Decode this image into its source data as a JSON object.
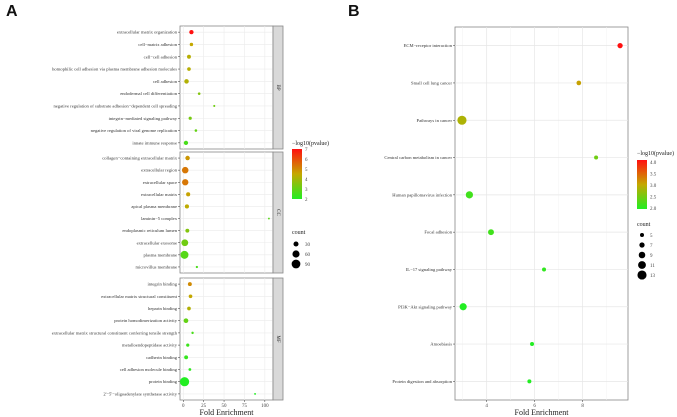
{
  "chart_data": [
    {
      "panel_label": "A",
      "type": "scatter",
      "xlabel": "Fold Enrichment",
      "xlim": [
        -4,
        110
      ],
      "xticks": [
        0,
        25,
        50,
        75,
        100
      ],
      "color_legend_title": "−log10(pvalue)",
      "color_ticks": [
        7,
        6,
        5,
        4,
        3,
        2
      ],
      "color_range": [
        2,
        7
      ],
      "size_legend_title": "count",
      "size_legend": [
        30,
        60,
        90
      ],
      "facets": [
        {
          "name": "BP",
          "terms": [
            {
              "term": "extracellular matrix organization",
              "fold": 10,
              "logp": 7.0,
              "count": 22
            },
            {
              "term": "cell−matrix adhesion",
              "fold": 10,
              "logp": 4.5,
              "count": 14
            },
            {
              "term": "cell−cell adhesion",
              "fold": 7,
              "logp": 4.3,
              "count": 18
            },
            {
              "term": "homophilic cell adhesion via plasma membrane adhesion molecules",
              "fold": 7,
              "logp": 4.3,
              "count": 16
            },
            {
              "term": "cell adhesion",
              "fold": 4,
              "logp": 4.2,
              "count": 24
            },
            {
              "term": "endodermal cell differentiation",
              "fold": 19.5,
              "logp": 3.5,
              "count": 8
            },
            {
              "term": "negative regulation of substrate adhesion−dependent cell spreading",
              "fold": 38,
              "logp": 3.2,
              "count": 5
            },
            {
              "term": "integrin−mediated signaling pathway",
              "fold": 8.5,
              "logp": 3.3,
              "count": 12
            },
            {
              "term": "negative regulation of viral genome replication",
              "fold": 15.5,
              "logp": 3.0,
              "count": 8
            },
            {
              "term": "innate immune response",
              "fold": 3.3,
              "logp": 2.6,
              "count": 22
            }
          ]
        },
        {
          "name": "CC",
          "terms": [
            {
              "term": "collagen−containing extracellular matrix",
              "fold": 5.3,
              "logp": 4.8,
              "count": 24
            },
            {
              "term": "extracellular region",
              "fold": 2.4,
              "logp": 5.3,
              "count": 50
            },
            {
              "term": "extracellular space",
              "fold": 2.4,
              "logp": 5.3,
              "count": 48
            },
            {
              "term": "extracellular matrix",
              "fold": 6,
              "logp": 4.6,
              "count": 20
            },
            {
              "term": "apical plasma membrane",
              "fold": 4.5,
              "logp": 4.4,
              "count": 20
            },
            {
              "term": "laminin−5 complex",
              "fold": 105,
              "logp": 2.8,
              "count": 4
            },
            {
              "term": "endoplasmic reticulum lumen",
              "fold": 5,
              "logp": 3.5,
              "count": 18
            },
            {
              "term": "extracellular exosome",
              "fold": 1.9,
              "logp": 3.2,
              "count": 55
            },
            {
              "term": "plasma membrane",
              "fold": 1.5,
              "logp": 2.8,
              "count": 75
            },
            {
              "term": "microvillus membrane",
              "fold": 16.7,
              "logp": 2.6,
              "count": 6
            }
          ]
        },
        {
          "name": "MF",
          "terms": [
            {
              "term": "integrin binding",
              "fold": 8.1,
              "logp": 5.0,
              "count": 18
            },
            {
              "term": "extracellular matrix structural constituent",
              "fold": 8.9,
              "logp": 4.5,
              "count": 16
            },
            {
              "term": "heparin binding",
              "fold": 7,
              "logp": 4.2,
              "count": 16
            },
            {
              "term": "protein homodimerization activity",
              "fold": 3.3,
              "logp": 3.0,
              "count": 26
            },
            {
              "term": "extracellular matrix structural constituent conferring tensile strength",
              "fold": 11.4,
              "logp": 2.6,
              "count": 7
            },
            {
              "term": "metalloendopeptidase activity",
              "fold": 5.5,
              "logp": 2.4,
              "count": 12
            },
            {
              "term": "cadherin binding",
              "fold": 3.5,
              "logp": 2.3,
              "count": 18
            },
            {
              "term": "cell adhesion molecule binding",
              "fold": 8.1,
              "logp": 2.2,
              "count": 9
            },
            {
              "term": "protein binding",
              "fold": 1.6,
              "logp": 2.0,
              "count": 100
            },
            {
              "term": "2'−5'−oligoadenylate synthetase activity",
              "fold": 88,
              "logp": 2.0,
              "count": 4
            }
          ]
        }
      ]
    },
    {
      "panel_label": "B",
      "type": "scatter",
      "xlabel": "Fold Enrichment",
      "xlim": [
        2.68,
        9.89
      ],
      "xticks": [
        4,
        6,
        8
      ],
      "color_legend_title": "−log10(pvalue)",
      "color_ticks": [
        "4.0",
        "3.5",
        "3.0",
        "2.5",
        "2.0"
      ],
      "color_range": [
        2.0,
        4.1
      ],
      "size_legend_title": "count",
      "size_legend": [
        5,
        7,
        9,
        11,
        13
      ],
      "terms": [
        {
          "term": "ECM−receptor interaction",
          "fold": 9.56,
          "logp": 4.1,
          "count": 7
        },
        {
          "term": "Small cell lung cancer",
          "fold": 7.84,
          "logp": 3.1,
          "count": 6
        },
        {
          "term": "Pathways in cancer",
          "fold": 2.97,
          "logp": 2.9,
          "count": 13
        },
        {
          "term": "Central carbon metabolism in cancer",
          "fold": 8.56,
          "logp": 2.5,
          "count": 5
        },
        {
          "term": "Human papillomavirus infection",
          "fold": 3.28,
          "logp": 2.2,
          "count": 10
        },
        {
          "term": "Focal adhesion",
          "fold": 4.18,
          "logp": 2.2,
          "count": 8
        },
        {
          "term": "IL−17 signaling pathway",
          "fold": 6.39,
          "logp": 2.1,
          "count": 5
        },
        {
          "term": "PI3K−Akt signaling pathway",
          "fold": 3.02,
          "logp": 2.0,
          "count": 10
        },
        {
          "term": "Amoebiasis",
          "fold": 5.89,
          "logp": 2.0,
          "count": 5
        },
        {
          "term": "Protein digestion and absorption",
          "fold": 5.78,
          "logp": 2.0,
          "count": 5
        }
      ]
    }
  ],
  "colors": {
    "low": "#22ee22",
    "mid": "#c4a800",
    "high": "#ff1010"
  }
}
